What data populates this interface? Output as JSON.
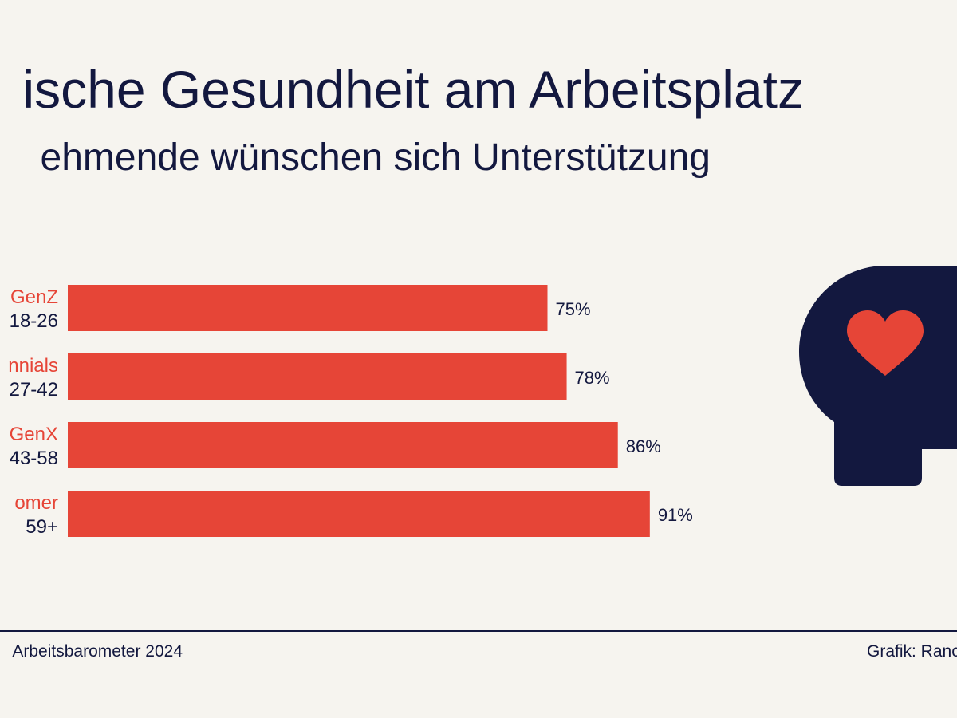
{
  "header": {
    "title": "ische Gesundheit am Arbeitsplatz",
    "subtitle": "ehmende wünschen sich Unterstützung"
  },
  "colors": {
    "background": "#f6f4ef",
    "bar": "#e64537",
    "navy": "#13183f",
    "generation": "#e64537",
    "age": "#13183f"
  },
  "chart_data": {
    "type": "bar",
    "orientation": "horizontal",
    "categories": [
      "GenZ",
      "nnials",
      "GenX",
      "omer"
    ],
    "age_ranges": [
      "18-26",
      "27-42",
      "43-58",
      "59+"
    ],
    "values": [
      75,
      78,
      86,
      91
    ],
    "value_labels": [
      "75%",
      "78%",
      "86%",
      "91%"
    ],
    "unit": "%",
    "xlim": [
      0,
      100
    ],
    "grid": false,
    "legend": "none"
  },
  "icon": {
    "name": "head-heart-icon"
  },
  "footer": {
    "source": "Arbeitsbarometer 2024",
    "credit": "Grafik: Ranc"
  }
}
